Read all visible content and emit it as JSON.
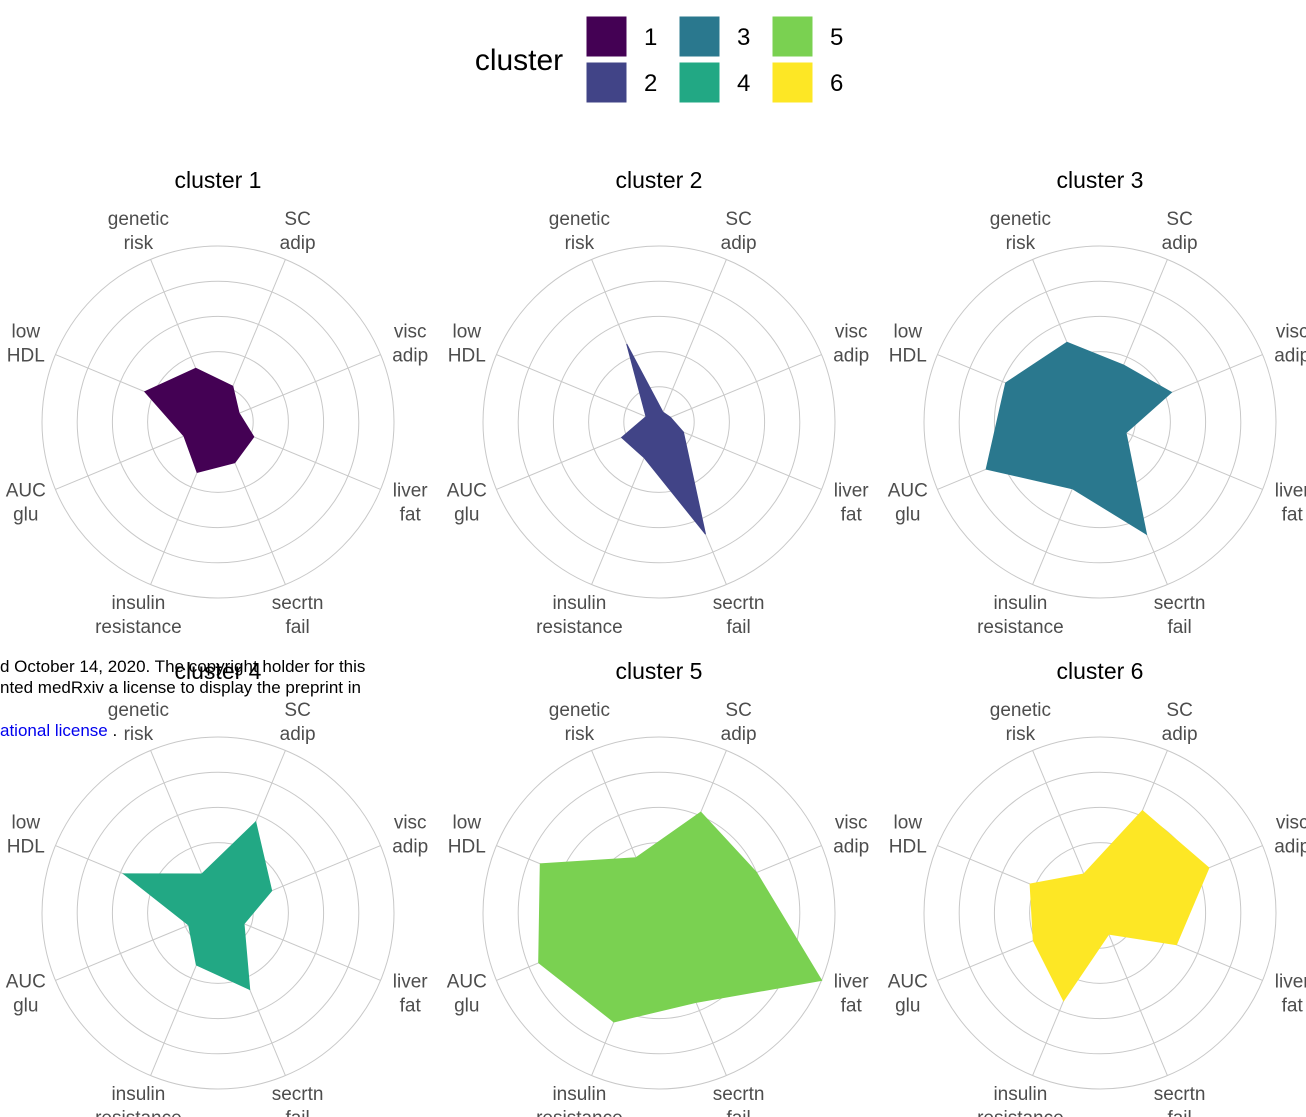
{
  "legend": {
    "title": "cluster",
    "entries": [
      {
        "label": "1",
        "color": "#440154"
      },
      {
        "label": "2",
        "color": "#414487"
      },
      {
        "label": "3",
        "color": "#2A788E"
      },
      {
        "label": "4",
        "color": "#22A884"
      },
      {
        "label": "5",
        "color": "#7AD151"
      },
      {
        "label": "6",
        "color": "#FDE725"
      }
    ]
  },
  "overlay_text": {
    "line1": "d October 14, 2020. The copyright holder for this",
    "line2": "nted medRxiv a license to display the preprint in",
    "link": "ational license",
    "link_suffix": " ."
  },
  "chart_data": {
    "type": "radar",
    "axes": [
      [
        "SC",
        "adip"
      ],
      [
        "visc",
        "adip"
      ],
      [
        "liver",
        "fat"
      ],
      [
        "secrtn",
        "fail"
      ],
      [
        "insulin",
        "resistance"
      ],
      [
        "AUC",
        "glu"
      ],
      [
        "low",
        "HDL"
      ],
      [
        "genetic",
        "risk"
      ]
    ],
    "rmax": 1.0,
    "rings": [
      0.2,
      0.4,
      0.6,
      0.8,
      1.0
    ],
    "grid": true,
    "legend_position": "top",
    "panels": [
      {
        "title": "cluster 1",
        "cluster": "1",
        "color": "#440154",
        "values": [
          0.22,
          0.13,
          0.22,
          0.25,
          0.31,
          0.21,
          0.45,
          0.33
        ]
      },
      {
        "title": "cluster 2",
        "cluster": "2",
        "color": "#414487",
        "values": [
          0.06,
          0.07,
          0.15,
          0.69,
          0.22,
          0.23,
          0.08,
          0.48
        ]
      },
      {
        "title": "cluster 3",
        "cluster": "3",
        "color": "#2A788E",
        "values": [
          0.35,
          0.44,
          0.16,
          0.69,
          0.41,
          0.7,
          0.58,
          0.49
        ]
      },
      {
        "title": "cluster 4",
        "cluster": "4",
        "color": "#22A884",
        "values": [
          0.56,
          0.33,
          0.16,
          0.47,
          0.32,
          0.18,
          0.58,
          0.24
        ]
      },
      {
        "title": "cluster 5",
        "cluster": "5",
        "color": "#7AD151",
        "values": [
          0.62,
          0.6,
          1.0,
          0.55,
          0.67,
          0.74,
          0.73,
          0.34
        ]
      },
      {
        "title": "cluster 6",
        "cluster": "6",
        "color": "#FDE725",
        "values": [
          0.63,
          0.67,
          0.47,
          0.13,
          0.54,
          0.41,
          0.43,
          0.24
        ]
      }
    ]
  }
}
